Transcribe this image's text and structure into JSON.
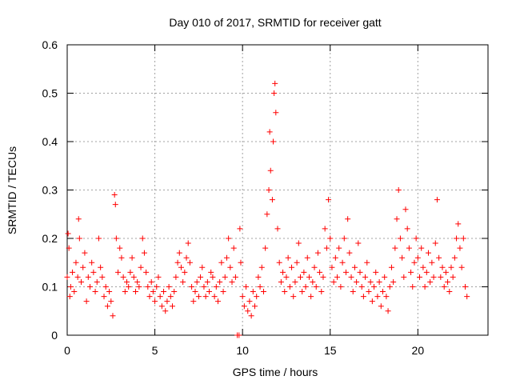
{
  "chart_data": {
    "type": "scatter",
    "title": "Day 010 of 2017, SRMTID for receiver gatt",
    "xlabel": "GPS time / hours",
    "ylabel": "SRMTID / TECUs",
    "xlim": [
      0,
      24
    ],
    "ylim": [
      0,
      0.6
    ],
    "xticks": [
      {
        "value": 0,
        "label": "0"
      },
      {
        "value": 5,
        "label": "5"
      },
      {
        "value": 10,
        "label": "10"
      },
      {
        "value": 15,
        "label": "15"
      },
      {
        "value": 20,
        "label": "20"
      }
    ],
    "yticks": [
      {
        "value": 0,
        "label": "0"
      },
      {
        "value": 0.1,
        "label": "0.1"
      },
      {
        "value": 0.2,
        "label": "0.2"
      },
      {
        "value": 0.3,
        "label": "0.3"
      },
      {
        "value": 0.4,
        "label": "0.4"
      },
      {
        "value": 0.5,
        "label": "0.5"
      },
      {
        "value": 0.6,
        "label": "0.6"
      }
    ],
    "grid": true,
    "marker": "+",
    "color": "#ff0000",
    "series": [
      {
        "name": "SRMTID",
        "points": [
          [
            0.0,
            0.12
          ],
          [
            0.05,
            0.21
          ],
          [
            0.1,
            0.18
          ],
          [
            0.15,
            0.08
          ],
          [
            0.2,
            0.1
          ],
          [
            0.3,
            0.13
          ],
          [
            0.4,
            0.09
          ],
          [
            0.5,
            0.15
          ],
          [
            0.6,
            0.12
          ],
          [
            0.65,
            0.24
          ],
          [
            0.7,
            0.2
          ],
          [
            0.8,
            0.11
          ],
          [
            0.9,
            0.14
          ],
          [
            1.0,
            0.17
          ],
          [
            1.1,
            0.07
          ],
          [
            1.2,
            0.12
          ],
          [
            1.3,
            0.1
          ],
          [
            1.4,
            0.15
          ],
          [
            1.5,
            0.13
          ],
          [
            1.6,
            0.09
          ],
          [
            1.7,
            0.11
          ],
          [
            1.8,
            0.2
          ],
          [
            1.9,
            0.14
          ],
          [
            2.0,
            0.12
          ],
          [
            2.1,
            0.08
          ],
          [
            2.2,
            0.1
          ],
          [
            2.3,
            0.06
          ],
          [
            2.4,
            0.09
          ],
          [
            2.5,
            0.07
          ],
          [
            2.6,
            0.04
          ],
          [
            2.7,
            0.29
          ],
          [
            2.75,
            0.27
          ],
          [
            2.8,
            0.2
          ],
          [
            2.9,
            0.13
          ],
          [
            3.0,
            0.18
          ],
          [
            3.1,
            0.16
          ],
          [
            3.2,
            0.12
          ],
          [
            3.3,
            0.09
          ],
          [
            3.4,
            0.11
          ],
          [
            3.5,
            0.1
          ],
          [
            3.6,
            0.13
          ],
          [
            3.7,
            0.16
          ],
          [
            3.8,
            0.12
          ],
          [
            3.9,
            0.09
          ],
          [
            4.0,
            0.11
          ],
          [
            4.1,
            0.1
          ],
          [
            4.2,
            0.14
          ],
          [
            4.3,
            0.2
          ],
          [
            4.4,
            0.17
          ],
          [
            4.5,
            0.13
          ],
          [
            4.6,
            0.1
          ],
          [
            4.7,
            0.08
          ],
          [
            4.8,
            0.11
          ],
          [
            4.9,
            0.09
          ],
          [
            5.0,
            0.07
          ],
          [
            5.1,
            0.1
          ],
          [
            5.2,
            0.12
          ],
          [
            5.3,
            0.08
          ],
          [
            5.4,
            0.06
          ],
          [
            5.5,
            0.09
          ],
          [
            5.6,
            0.05
          ],
          [
            5.7,
            0.07
          ],
          [
            5.8,
            0.1
          ],
          [
            5.9,
            0.08
          ],
          [
            6.0,
            0.06
          ],
          [
            6.1,
            0.09
          ],
          [
            6.2,
            0.12
          ],
          [
            6.3,
            0.15
          ],
          [
            6.4,
            0.17
          ],
          [
            6.5,
            0.14
          ],
          [
            6.6,
            0.11
          ],
          [
            6.7,
            0.13
          ],
          [
            6.8,
            0.16
          ],
          [
            6.9,
            0.19
          ],
          [
            7.0,
            0.15
          ],
          [
            7.1,
            0.1
          ],
          [
            7.2,
            0.07
          ],
          [
            7.3,
            0.09
          ],
          [
            7.4,
            0.11
          ],
          [
            7.5,
            0.08
          ],
          [
            7.6,
            0.12
          ],
          [
            7.7,
            0.14
          ],
          [
            7.8,
            0.1
          ],
          [
            7.9,
            0.08
          ],
          [
            8.0,
            0.11
          ],
          [
            8.1,
            0.09
          ],
          [
            8.2,
            0.13
          ],
          [
            8.3,
            0.12
          ],
          [
            8.4,
            0.08
          ],
          [
            8.5,
            0.1
          ],
          [
            8.6,
            0.07
          ],
          [
            8.7,
            0.11
          ],
          [
            8.8,
            0.15
          ],
          [
            8.9,
            0.09
          ],
          [
            9.0,
            0.12
          ],
          [
            9.1,
            0.16
          ],
          [
            9.2,
            0.2
          ],
          [
            9.3,
            0.14
          ],
          [
            9.4,
            0.11
          ],
          [
            9.5,
            0.18
          ],
          [
            9.6,
            0.12
          ],
          [
            9.7,
            0.0
          ],
          [
            9.8,
            0.0
          ],
          [
            9.85,
            0.22
          ],
          [
            9.9,
            0.15
          ],
          [
            10.0,
            0.08
          ],
          [
            10.1,
            0.06
          ],
          [
            10.2,
            0.1
          ],
          [
            10.3,
            0.05
          ],
          [
            10.4,
            0.07
          ],
          [
            10.5,
            0.04
          ],
          [
            10.6,
            0.09
          ],
          [
            10.7,
            0.06
          ],
          [
            10.8,
            0.08
          ],
          [
            10.9,
            0.12
          ],
          [
            11.0,
            0.1
          ],
          [
            11.1,
            0.14
          ],
          [
            11.2,
            0.09
          ],
          [
            11.3,
            0.18
          ],
          [
            11.4,
            0.25
          ],
          [
            11.5,
            0.3
          ],
          [
            11.55,
            0.42
          ],
          [
            11.6,
            0.34
          ],
          [
            11.7,
            0.28
          ],
          [
            11.75,
            0.4
          ],
          [
            11.8,
            0.5
          ],
          [
            11.85,
            0.52
          ],
          [
            11.9,
            0.46
          ],
          [
            12.0,
            0.22
          ],
          [
            12.1,
            0.15
          ],
          [
            12.2,
            0.11
          ],
          [
            12.3,
            0.13
          ],
          [
            12.4,
            0.09
          ],
          [
            12.5,
            0.12
          ],
          [
            12.6,
            0.16
          ],
          [
            12.7,
            0.1
          ],
          [
            12.8,
            0.14
          ],
          [
            12.9,
            0.08
          ],
          [
            13.0,
            0.11
          ],
          [
            13.1,
            0.15
          ],
          [
            13.2,
            0.19
          ],
          [
            13.3,
            0.12
          ],
          [
            13.4,
            0.09
          ],
          [
            13.5,
            0.13
          ],
          [
            13.6,
            0.1
          ],
          [
            13.7,
            0.16
          ],
          [
            13.8,
            0.12
          ],
          [
            13.9,
            0.08
          ],
          [
            14.0,
            0.11
          ],
          [
            14.1,
            0.14
          ],
          [
            14.2,
            0.1
          ],
          [
            14.3,
            0.17
          ],
          [
            14.4,
            0.13
          ],
          [
            14.5,
            0.09
          ],
          [
            14.6,
            0.12
          ],
          [
            14.7,
            0.22
          ],
          [
            14.8,
            0.18
          ],
          [
            14.9,
            0.28
          ],
          [
            15.0,
            0.2
          ],
          [
            15.1,
            0.14
          ],
          [
            15.2,
            0.11
          ],
          [
            15.3,
            0.16
          ],
          [
            15.4,
            0.12
          ],
          [
            15.5,
            0.18
          ],
          [
            15.6,
            0.1
          ],
          [
            15.7,
            0.15
          ],
          [
            15.8,
            0.2
          ],
          [
            15.9,
            0.13
          ],
          [
            16.0,
            0.24
          ],
          [
            16.1,
            0.17
          ],
          [
            16.2,
            0.12
          ],
          [
            16.3,
            0.09
          ],
          [
            16.4,
            0.14
          ],
          [
            16.5,
            0.11
          ],
          [
            16.6,
            0.19
          ],
          [
            16.7,
            0.13
          ],
          [
            16.8,
            0.1
          ],
          [
            16.9,
            0.08
          ],
          [
            17.0,
            0.12
          ],
          [
            17.1,
            0.15
          ],
          [
            17.2,
            0.09
          ],
          [
            17.3,
            0.11
          ],
          [
            17.4,
            0.07
          ],
          [
            17.5,
            0.1
          ],
          [
            17.6,
            0.13
          ],
          [
            17.7,
            0.08
          ],
          [
            17.8,
            0.11
          ],
          [
            17.9,
            0.06
          ],
          [
            18.0,
            0.09
          ],
          [
            18.1,
            0.12
          ],
          [
            18.2,
            0.08
          ],
          [
            18.3,
            0.05
          ],
          [
            18.4,
            0.1
          ],
          [
            18.5,
            0.14
          ],
          [
            18.6,
            0.11
          ],
          [
            18.7,
            0.18
          ],
          [
            18.8,
            0.24
          ],
          [
            18.9,
            0.3
          ],
          [
            19.0,
            0.2
          ],
          [
            19.1,
            0.16
          ],
          [
            19.2,
            0.12
          ],
          [
            19.3,
            0.26
          ],
          [
            19.4,
            0.22
          ],
          [
            19.5,
            0.18
          ],
          [
            19.6,
            0.13
          ],
          [
            19.7,
            0.1
          ],
          [
            19.8,
            0.15
          ],
          [
            19.9,
            0.2
          ],
          [
            20.0,
            0.16
          ],
          [
            20.1,
            0.12
          ],
          [
            20.2,
            0.18
          ],
          [
            20.3,
            0.14
          ],
          [
            20.4,
            0.1
          ],
          [
            20.5,
            0.13
          ],
          [
            20.6,
            0.17
          ],
          [
            20.7,
            0.11
          ],
          [
            20.8,
            0.15
          ],
          [
            20.9,
            0.12
          ],
          [
            21.0,
            0.19
          ],
          [
            21.1,
            0.28
          ],
          [
            21.2,
            0.16
          ],
          [
            21.3,
            0.12
          ],
          [
            21.4,
            0.14
          ],
          [
            21.5,
            0.1
          ],
          [
            21.6,
            0.13
          ],
          [
            21.7,
            0.11
          ],
          [
            21.8,
            0.09
          ],
          [
            21.9,
            0.14
          ],
          [
            22.0,
            0.12
          ],
          [
            22.1,
            0.16
          ],
          [
            22.2,
            0.2
          ],
          [
            22.3,
            0.23
          ],
          [
            22.4,
            0.18
          ],
          [
            22.5,
            0.14
          ],
          [
            22.6,
            0.2
          ],
          [
            22.7,
            0.1
          ],
          [
            22.8,
            0.08
          ]
        ]
      }
    ]
  }
}
